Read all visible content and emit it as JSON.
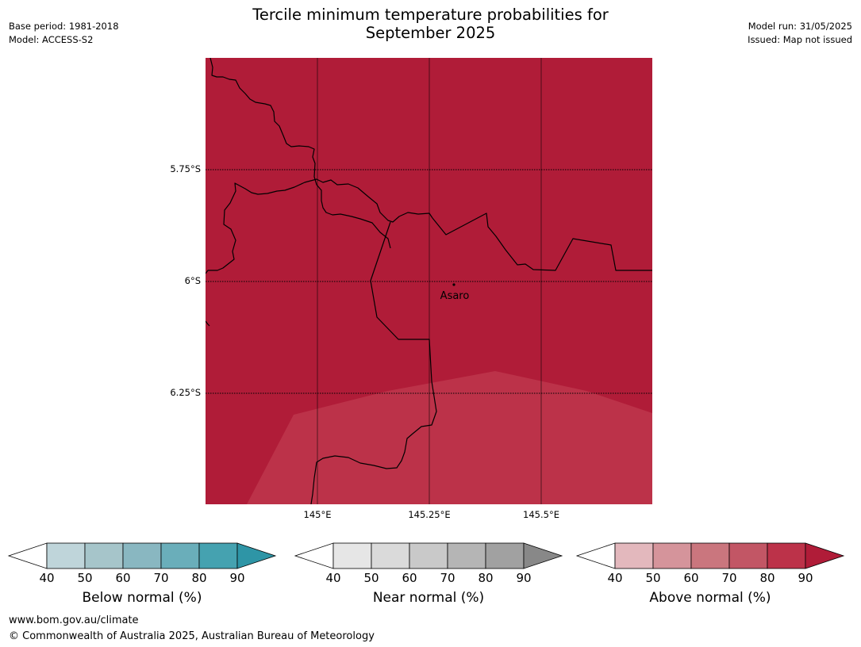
{
  "title": {
    "line1": "Tercile minimum temperature probabilities for",
    "line2": "September 2025"
  },
  "meta_left": {
    "base_period": "Base period: 1981-2018",
    "model": "Model: ACCESS-S2"
  },
  "meta_right": {
    "model_run": "Model run: 31/05/2025",
    "issued": "Issued: Map not issued"
  },
  "map": {
    "lat_labels": [
      "5.75°S",
      "6°S",
      "6.25°S"
    ],
    "lon_labels": [
      "145°E",
      "145.25°E",
      "145.5°E"
    ],
    "place": "Asaro",
    "background_color": "#b01c38",
    "lighter_zone_color": "#bc3249",
    "colors": {
      "grid": "#000000",
      "boundary": "#000000"
    }
  },
  "legends": [
    {
      "label": "Below normal (%)",
      "ticks": [
        "40",
        "50",
        "60",
        "70",
        "80",
        "90"
      ],
      "colors": [
        "#bfd5da",
        "#a6c5ca",
        "#89b7c1",
        "#6aaeba",
        "#45a2b0",
        "#2e95a6"
      ]
    },
    {
      "label": "Near normal (%)",
      "ticks": [
        "40",
        "50",
        "60",
        "70",
        "80",
        "90"
      ],
      "colors": [
        "#e6e6e6",
        "#dadada",
        "#c9c9c9",
        "#b5b5b5",
        "#a1a1a1",
        "#888888"
      ]
    },
    {
      "label": "Above normal (%)",
      "ticks": [
        "40",
        "50",
        "60",
        "70",
        "80",
        "90"
      ],
      "colors": [
        "#e3b8bd",
        "#d5949b",
        "#ca767e",
        "#c25665",
        "#bc3249",
        "#b01c38"
      ]
    }
  ],
  "footer": {
    "website": "www.bom.gov.au/climate",
    "copyright": "© Commonwealth of Australia 2025, Australian Bureau of Meteorology"
  }
}
